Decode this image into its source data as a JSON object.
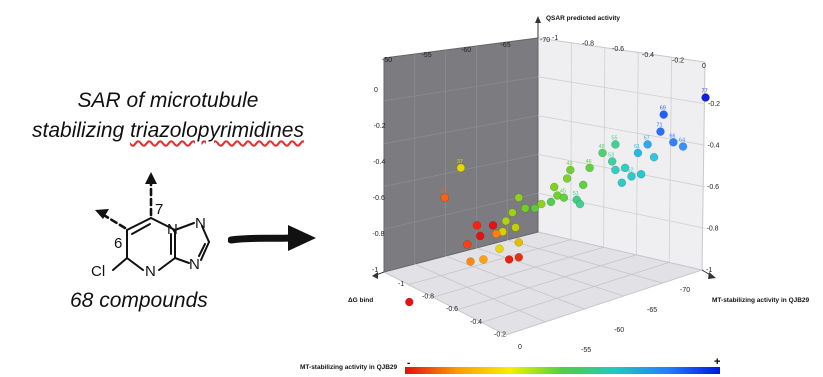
{
  "title": {
    "line1": "SAR of microtubule",
    "line2_prefix": "stabilizing ",
    "line2_highlight": "triazolopyrimidines"
  },
  "compound_count_label": "68 compounds",
  "molecule": {
    "label_cl": "Cl",
    "label_n_left": "N",
    "label_n_mid": "N",
    "label_n_right1": "N",
    "label_n_right2": "N",
    "pos_6": "6",
    "pos_7": "7"
  },
  "chart_data": {
    "type": "scatter",
    "title": "QSAR predicted activity",
    "xlabel": "MT-stabilizing activity in QJB29",
    "ylabel": "ΔG bind",
    "zlabel": "QSAR predicted activity",
    "top_ticks": [
      "-50",
      "-55",
      "-60",
      "-65",
      "-70"
    ],
    "z_ticks_top": [
      "-1",
      "-0.8",
      "-0.6",
      "-0.4",
      "-0.2",
      "0"
    ],
    "z_ticks_left": [
      "0",
      "-0.2",
      "-0.4",
      "-0.6",
      "-0.8",
      "-1"
    ],
    "z_ticks_right": [
      "-0.2",
      "-0.4",
      "-0.6",
      "-0.8",
      "-1"
    ],
    "y_ticks_front": [
      "-1",
      "-0.8",
      "-0.6",
      "-0.4",
      "-0.2",
      "0"
    ],
    "x_ticks_front": [
      "-70",
      "-65",
      "-60",
      "-55",
      "-50"
    ],
    "points": [
      {
        "label": "77",
        "x": 0.98,
        "y": 0.88,
        "color": "#1020e0"
      },
      {
        "label": "69",
        "x": 0.85,
        "y": 0.8,
        "color": "#2060ff"
      },
      {
        "label": "71",
        "x": 0.84,
        "y": 0.72,
        "color": "#2a70ff"
      },
      {
        "label": "66",
        "x": 0.88,
        "y": 0.67,
        "color": "#3080ff"
      },
      {
        "label": "64",
        "x": 0.91,
        "y": 0.65,
        "color": "#3a90ff"
      },
      {
        "label": "67",
        "x": 0.8,
        "y": 0.66,
        "color": "#30a8f0"
      },
      {
        "label": "61",
        "x": 0.77,
        "y": 0.62,
        "color": "#28b8e8"
      },
      {
        "label": "",
        "x": 0.82,
        "y": 0.6,
        "color": "#30c8e0"
      },
      {
        "label": "",
        "x": 0.78,
        "y": 0.52,
        "color": "#28c8d0"
      },
      {
        "label": "55",
        "x": 0.7,
        "y": 0.66,
        "color": "#40d090"
      },
      {
        "label": "48",
        "x": 0.66,
        "y": 0.62,
        "color": "#50d070"
      },
      {
        "label": "53",
        "x": 0.69,
        "y": 0.58,
        "color": "#40d0a0"
      },
      {
        "label": "",
        "x": 0.7,
        "y": 0.54,
        "color": "#30d0c0"
      },
      {
        "label": "",
        "x": 0.73,
        "y": 0.55,
        "color": "#30d0c0"
      },
      {
        "label": "52",
        "x": 0.75,
        "y": 0.51,
        "color": "#30c8c8"
      },
      {
        "label": "",
        "x": 0.72,
        "y": 0.48,
        "color": "#30c8c8"
      },
      {
        "label": "46",
        "x": 0.62,
        "y": 0.55,
        "color": "#60d040"
      },
      {
        "label": "43",
        "x": 0.56,
        "y": 0.54,
        "color": "#70d030"
      },
      {
        "label": "",
        "x": 0.55,
        "y": 0.5,
        "color": "#80d030"
      },
      {
        "label": "",
        "x": 0.6,
        "y": 0.47,
        "color": "#60d040"
      },
      {
        "label": "",
        "x": 0.51,
        "y": 0.46,
        "color": "#80d020"
      },
      {
        "label": "",
        "x": 0.52,
        "y": 0.42,
        "color": "#70d030"
      },
      {
        "label": "45",
        "x": 0.54,
        "y": 0.41,
        "color": "#60d040"
      },
      {
        "label": "",
        "x": 0.5,
        "y": 0.39,
        "color": "#50d050"
      },
      {
        "label": "",
        "x": 0.47,
        "y": 0.38,
        "color": "#90d020"
      },
      {
        "label": "",
        "x": 0.45,
        "y": 0.36,
        "color": "#60c840"
      },
      {
        "label": "51",
        "x": 0.58,
        "y": 0.4,
        "color": "#40d080"
      },
      {
        "label": "",
        "x": 0.59,
        "y": 0.38,
        "color": "#40d090"
      },
      {
        "label": "",
        "x": 0.4,
        "y": 0.41,
        "color": "#90d020"
      },
      {
        "label": "",
        "x": 0.42,
        "y": 0.36,
        "color": "#70d020"
      },
      {
        "label": "",
        "x": 0.38,
        "y": 0.34,
        "color": "#a0d010"
      },
      {
        "label": "",
        "x": 0.36,
        "y": 0.3,
        "color": "#b0d010"
      },
      {
        "label": "",
        "x": 0.39,
        "y": 0.27,
        "color": "#c0d000"
      },
      {
        "label": "",
        "x": 0.35,
        "y": 0.25,
        "color": "#d8d000"
      },
      {
        "label": "",
        "x": 0.4,
        "y": 0.2,
        "color": "#e0c000"
      },
      {
        "label": "",
        "x": 0.34,
        "y": 0.17,
        "color": "#e8d800"
      },
      {
        "label": "37",
        "x": 0.22,
        "y": 0.55,
        "color": "#e8d800"
      },
      {
        "label": "27",
        "x": 0.17,
        "y": 0.41,
        "color": "#ff6010"
      },
      {
        "label": "",
        "x": 0.27,
        "y": 0.28,
        "color": "#ff2010"
      },
      {
        "label": "",
        "x": 0.28,
        "y": 0.23,
        "color": "#e81010"
      },
      {
        "label": "",
        "x": 0.32,
        "y": 0.28,
        "color": "#e81010"
      },
      {
        "label": "",
        "x": 0.24,
        "y": 0.19,
        "color": "#ff4010"
      },
      {
        "label": "",
        "x": 0.33,
        "y": 0.24,
        "color": "#ff8010"
      },
      {
        "label": "",
        "x": 0.29,
        "y": 0.12,
        "color": "#ffa010"
      },
      {
        "label": "",
        "x": 0.25,
        "y": 0.11,
        "color": "#ff8810"
      },
      {
        "label": "",
        "x": 0.4,
        "y": 0.13,
        "color": "#e83010"
      },
      {
        "label": "",
        "x": 0.37,
        "y": 0.12,
        "color": "#e82010"
      },
      {
        "label": "",
        "x": 0.06,
        "y": -0.08,
        "color": "#e81010"
      }
    ]
  },
  "colorbar": {
    "label": "MT-stabilizing activity in QJB29",
    "min_symbol": "-",
    "max_symbol": "+"
  },
  "colors": {
    "back_wall": "#7f7f83",
    "right_wall": "#eeeef1",
    "floor": "#ddd",
    "grid": "#c8c8cc",
    "text": "#111111"
  }
}
